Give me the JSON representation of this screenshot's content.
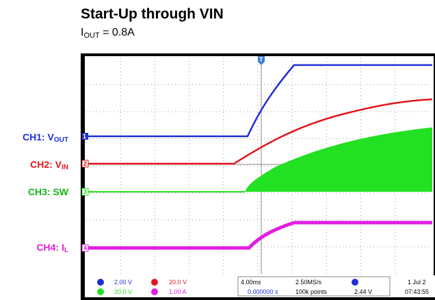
{
  "header": {
    "title": "Start-Up through VIN",
    "subtitle": {
      "main": "I",
      "sub": "OUT",
      "rest": " = 0.8A"
    }
  },
  "channels": [
    {
      "label": "CH1: V",
      "sub": "OUT",
      "marker": "1"
    },
    {
      "label": "CH2: V",
      "sub": "IN",
      "marker": "2"
    },
    {
      "label": "CH3: SW",
      "sub": "",
      "marker": "3"
    },
    {
      "label": "CH4: I",
      "sub": "L",
      "marker": "4"
    }
  ],
  "trigger_marker": "T",
  "status": {
    "ch1_scale": "2.00 V",
    "ch2_scale": "20.0 V",
    "ch3_scale": "20.0 V",
    "ch4_scale": "1.00 A",
    "timebase": "4.00ms",
    "offset": "0.000000 s",
    "sample_rate": "2.50MS/s",
    "record": "100k points",
    "trigger_level": "2.44 V",
    "date": "1 Jul 2",
    "time": "07:43:55"
  }
}
